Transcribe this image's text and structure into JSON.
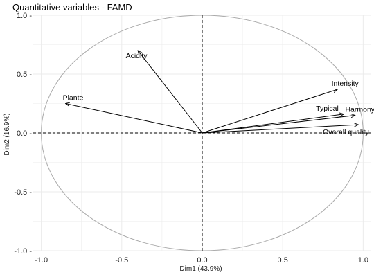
{
  "chart_data": {
    "type": "scatter",
    "subtype": "correlation-circle",
    "title": "Quantitative variables - FAMD",
    "xlabel": "Dim1 (43.9%)",
    "ylabel": "Dim2 (16.9%)",
    "xlim": [
      -1.05,
      1.05
    ],
    "ylim": [
      -1.0,
      1.0
    ],
    "x_ticks": [
      -1.0,
      -0.5,
      0.0,
      0.5,
      1.0
    ],
    "y_ticks": [
      -1.0,
      -0.5,
      0.0,
      0.5,
      1.0
    ],
    "x_tick_labels": [
      "-1.0",
      "-0.5",
      "0.0",
      "0.5",
      "1.0"
    ],
    "y_tick_labels": [
      "-1.0 -",
      "-0.5 -",
      "0.0 -",
      "0.5 -",
      "1.0 -"
    ],
    "grid": true,
    "unit_circle": true,
    "reference_lines": "dashed at x=0 and y=0",
    "colors": {
      "arrows": "#000000",
      "circle": "#aaaaaa",
      "grid": "#ebebeb"
    },
    "points": [
      {
        "label": "Acidity",
        "x": -0.4,
        "y": 0.7
      },
      {
        "label": "Plante",
        "x": -0.85,
        "y": 0.25
      },
      {
        "label": "Intensity",
        "x": 0.84,
        "y": 0.37
      },
      {
        "label": "Typical",
        "x": 0.88,
        "y": 0.16
      },
      {
        "label": "Harmony",
        "x": 0.95,
        "y": 0.15
      },
      {
        "label": "Overall quality",
        "x": 0.97,
        "y": 0.07
      }
    ]
  }
}
